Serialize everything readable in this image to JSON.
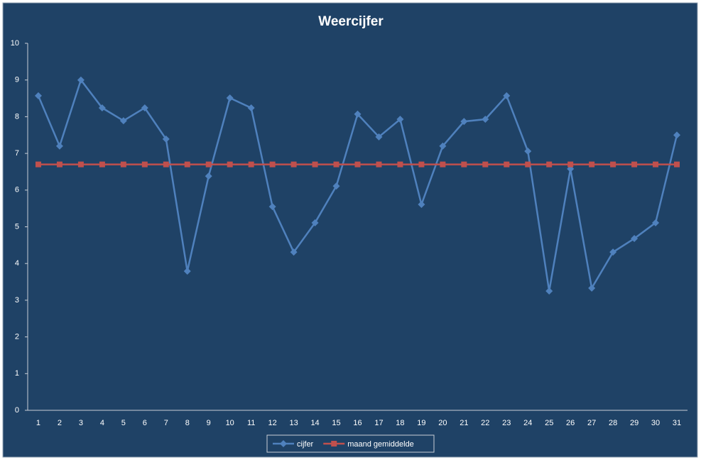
{
  "chart_data": {
    "type": "line",
    "title": "Weercijfer",
    "categories": [
      1,
      2,
      3,
      4,
      5,
      6,
      7,
      8,
      9,
      10,
      11,
      12,
      13,
      14,
      15,
      16,
      17,
      18,
      19,
      20,
      21,
      22,
      23,
      24,
      25,
      26,
      27,
      28,
      29,
      30,
      31
    ],
    "series": [
      {
        "name": "cijfer",
        "color": "#4f81bd",
        "marker": "diamond",
        "values": [
          8.57,
          7.2,
          9.0,
          8.24,
          7.89,
          8.24,
          7.39,
          3.79,
          6.38,
          8.51,
          8.24,
          5.55,
          4.31,
          5.11,
          6.11,
          8.07,
          7.45,
          7.93,
          5.61,
          7.2,
          7.87,
          7.93,
          8.57,
          7.06,
          3.25,
          6.58,
          3.33,
          4.31,
          4.68,
          5.11,
          7.5
        ]
      },
      {
        "name": "maand gemiddelde",
        "color": "#c0504d",
        "marker": "square",
        "values": [
          6.7,
          6.7,
          6.7,
          6.7,
          6.7,
          6.7,
          6.7,
          6.7,
          6.7,
          6.7,
          6.7,
          6.7,
          6.7,
          6.7,
          6.7,
          6.7,
          6.7,
          6.7,
          6.7,
          6.7,
          6.7,
          6.7,
          6.7,
          6.7,
          6.7,
          6.7,
          6.7,
          6.7,
          6.7,
          6.7,
          6.7
        ]
      }
    ],
    "ylim": [
      0,
      10
    ],
    "yticks": [
      0,
      1,
      2,
      3,
      4,
      5,
      6,
      7,
      8,
      9,
      10
    ],
    "grid": false,
    "legend": "bottom"
  }
}
